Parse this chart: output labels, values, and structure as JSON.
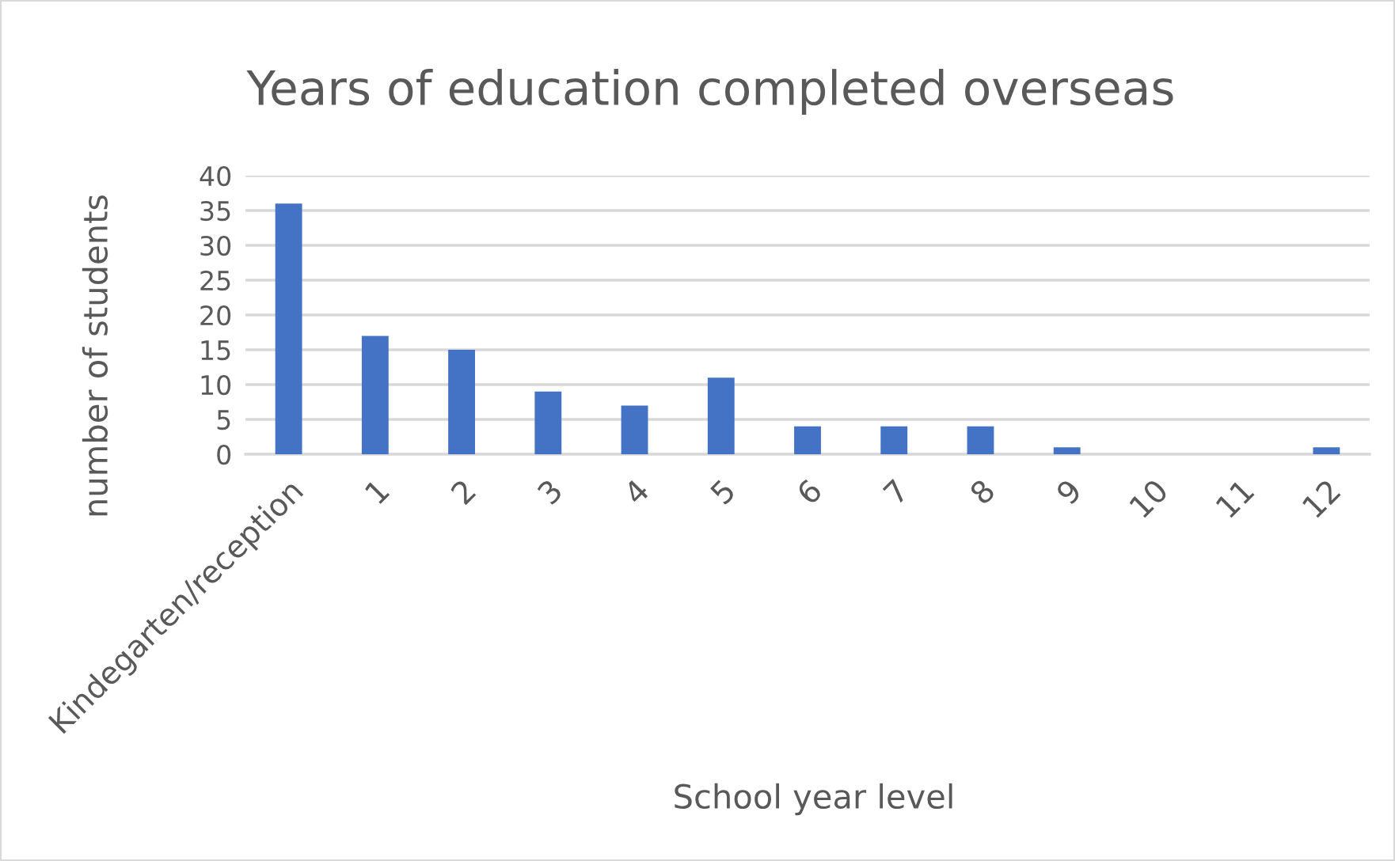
{
  "chart_data": {
    "type": "bar",
    "title": "Years of education completed overseas",
    "xlabel": "School year level",
    "ylabel": "number of students",
    "categories": [
      "Kindegarten/reception",
      "1",
      "2",
      "3",
      "4",
      "5",
      "6",
      "7",
      "8",
      "9",
      "10",
      "11",
      "12"
    ],
    "values": [
      36,
      17,
      15,
      9,
      7,
      11,
      4,
      4,
      4,
      1,
      0,
      0,
      1
    ],
    "color": "#4472c4",
    "ylim": [
      0,
      40
    ],
    "yticks": [
      0,
      5,
      10,
      15,
      20,
      25,
      30,
      35,
      40
    ],
    "grid": "y",
    "legend": false
  }
}
